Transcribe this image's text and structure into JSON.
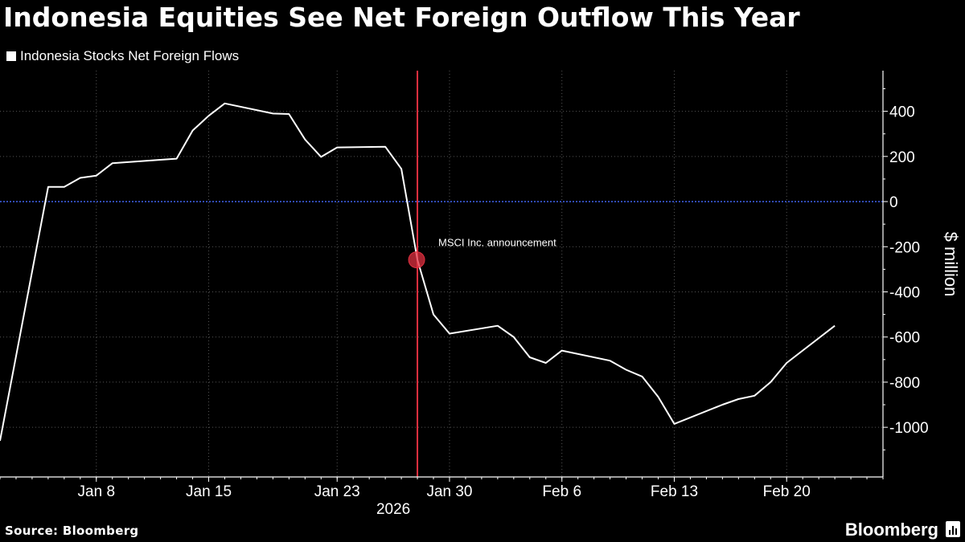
{
  "header": {
    "title": "Indonesia Equities See Net Foreign Outflow This Year"
  },
  "footer": {
    "source": "Source: Bloomberg",
    "brand": "Bloomberg"
  },
  "colors": {
    "background": "#000000",
    "line": "#ffffff",
    "zero_line": "#3b5bdb",
    "event_line": "#e03040",
    "grid": "#555555"
  },
  "icons": [
    "bloomberg-logo-icon"
  ],
  "chart_data": {
    "type": "line",
    "title": "Indonesia Equities See Net Foreign Outflow This Year",
    "ylabel": "$ million",
    "xlabel": "",
    "year_label": "2026",
    "ylim": [
      -1220,
      580
    ],
    "xlim": [
      "2026-01-02",
      "2026-02-26"
    ],
    "y_ticks": [
      400,
      200,
      0,
      -200,
      -400,
      -600,
      -800,
      -1000
    ],
    "y_tick_labels": [
      "400",
      "200",
      "0",
      "-200",
      "-400",
      "-600",
      "-800",
      "-1000"
    ],
    "x_ticks": [
      "2026-01-08",
      "2026-01-15",
      "2026-01-23",
      "2026-01-30",
      "2026-02-06",
      "2026-02-13",
      "2026-02-20"
    ],
    "x_tick_labels": [
      "Jan 8",
      "Jan 15",
      "Jan 23",
      "Jan 30",
      "Feb 6",
      "Feb 13",
      "Feb 20"
    ],
    "grid": true,
    "axis_position": "right",
    "series": [
      {
        "name": "Indonesia Stocks Net Foreign Flows",
        "x": [
          "2026-01-02",
          "2026-01-05",
          "2026-01-06",
          "2026-01-07",
          "2026-01-08",
          "2026-01-09",
          "2026-01-12",
          "2026-01-13",
          "2026-01-14",
          "2026-01-15",
          "2026-01-16",
          "2026-01-19",
          "2026-01-20",
          "2026-01-21",
          "2026-01-22",
          "2026-01-23",
          "2026-01-26",
          "2026-01-27",
          "2026-01-28",
          "2026-01-29",
          "2026-01-30",
          "2026-02-02",
          "2026-02-03",
          "2026-02-04",
          "2026-02-05",
          "2026-02-06",
          "2026-02-09",
          "2026-02-10",
          "2026-02-11",
          "2026-02-12",
          "2026-02-13",
          "2026-02-16",
          "2026-02-17",
          "2026-02-18",
          "2026-02-19",
          "2026-02-20",
          "2026-02-23",
          "2026-02-24",
          "2026-02-25"
        ],
        "values": [
          -1060,
          65,
          65,
          105,
          115,
          170,
          185,
          190,
          315,
          380,
          435,
          390,
          388,
          275,
          198,
          240,
          243,
          145,
          -258,
          -500,
          -585,
          -550,
          -600,
          -690,
          -715,
          -660,
          -705,
          -745,
          -775,
          -865,
          -985,
          -900,
          -875,
          -860,
          -800,
          -715,
          -550,
          null,
          null
        ]
      }
    ],
    "annotations": [
      {
        "x": "2026-01-28",
        "y": -258,
        "text": "MSCI Inc. announcement",
        "type": "vertical-line-with-marker"
      }
    ]
  }
}
